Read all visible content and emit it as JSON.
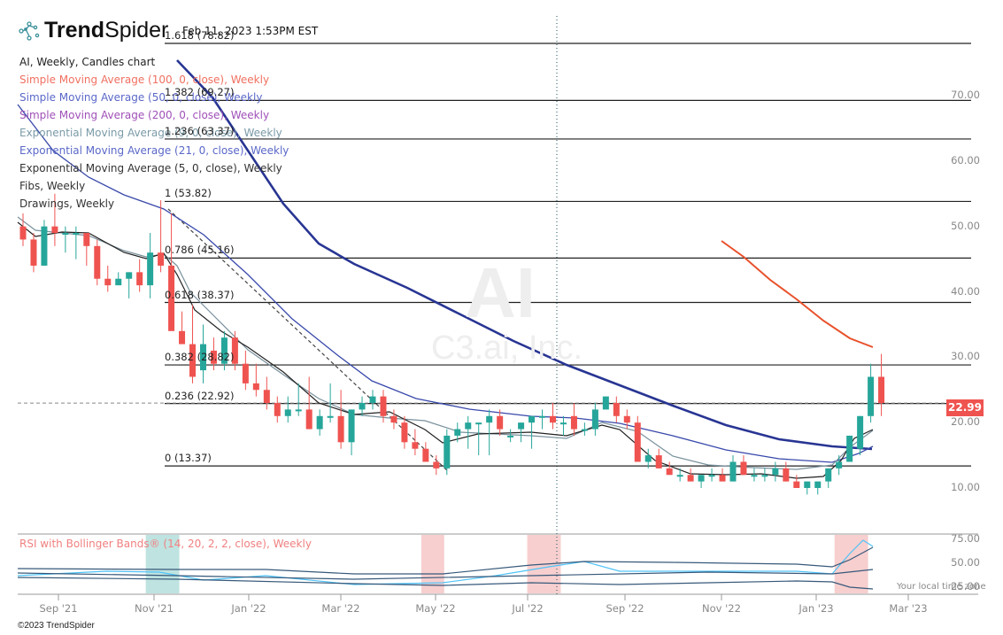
{
  "header": {
    "logo_bold": "Trend",
    "logo_light": "Spider",
    "timestamp": "Feb 11, 2023 1:53PM EST"
  },
  "legend": [
    {
      "label": "AI, Weekly, Candles chart",
      "color": "#222222"
    },
    {
      "label": "Simple Moving Average (100, 0, close), Weekly",
      "color": "#f07060"
    },
    {
      "label": "Simple Moving Average (50, 0, close), Weekly",
      "color": "#5a68c8"
    },
    {
      "label": "Simple Moving Average (200, 0, close), Weekly",
      "color": "#a050b8"
    },
    {
      "label": "Exponential Moving Average (9, 0, close), Weekly",
      "color": "#7a9aa8"
    },
    {
      "label": "Exponential Moving Average (21, 0, close), Weekly",
      "color": "#5a68c8"
    },
    {
      "label": "Exponential Moving Average (5, 0, close), Weekly",
      "color": "#333333"
    },
    {
      "label": "Fibs, Weekly",
      "color": "#333333"
    },
    {
      "label": "Drawings, Weekly",
      "color": "#333333"
    }
  ],
  "watermark": {
    "symbol": "AI",
    "company": "C3.ai, Inc."
  },
  "fibs": [
    {
      "label": "1.618 (78.82)",
      "value": 78.82
    },
    {
      "label": "1.382 (69.27)",
      "value": 69.27
    },
    {
      "label": "1.236 (63.37)",
      "value": 63.37
    },
    {
      "label": "1 (53.82)",
      "value": 53.82
    },
    {
      "label": "0.786 (45.16)",
      "value": 45.16
    },
    {
      "label": "0.618 (38.37)",
      "value": 38.37
    },
    {
      "label": "0.382 (28.82)",
      "value": 28.82
    },
    {
      "label": "0.236 (22.92)",
      "value": 22.92
    },
    {
      "label": "0 (13.37)",
      "value": 13.37
    }
  ],
  "last_price": "22.99",
  "rsi": {
    "title": "RSI with Bollinger Bands® (14, 20, 2, 2, close), Weekly",
    "y_labels": [
      "75.00",
      "50.00",
      "25.00"
    ]
  },
  "timezone_note": "Your local time zone",
  "copyright": "©2023 TrendSpider",
  "colors": {
    "up": "#26a69a",
    "down": "#ef5350",
    "sma100": "#e8502a",
    "sma50": "#283593",
    "ema21": "#3949ab",
    "ema9": "#78909c",
    "ema5": "#222222",
    "rsi": "#4fc3f7",
    "bb": "#37597a"
  },
  "chart_data": {
    "type": "candlestick",
    "title": "AI, Weekly, Candles chart",
    "symbol": "AI",
    "company": "C3.ai, Inc.",
    "x_ticks": [
      "Sep '21",
      "Nov '21",
      "Jan '22",
      "Mar '22",
      "May '22",
      "Jul '22",
      "Sep '22",
      "Nov '22",
      "Jan '23",
      "Mar '23"
    ],
    "y_ticks": [
      10,
      20,
      30,
      40,
      50,
      60,
      70
    ],
    "ylim": [
      6,
      80
    ],
    "last_price": 22.99,
    "candles": [
      {
        "o": 50,
        "h": 52,
        "l": 47,
        "c": 48
      },
      {
        "o": 48,
        "h": 49,
        "l": 43,
        "c": 44
      },
      {
        "o": 44,
        "h": 51,
        "l": 44,
        "c": 50
      },
      {
        "o": 50,
        "h": 55,
        "l": 47,
        "c": 49
      },
      {
        "o": 49,
        "h": 50,
        "l": 46,
        "c": 49
      },
      {
        "o": 49,
        "h": 50,
        "l": 45,
        "c": 49
      },
      {
        "o": 49,
        "h": 49,
        "l": 44,
        "c": 47
      },
      {
        "o": 47,
        "h": 48,
        "l": 41,
        "c": 42
      },
      {
        "o": 42,
        "h": 44,
        "l": 40,
        "c": 41
      },
      {
        "o": 41,
        "h": 43,
        "l": 41,
        "c": 42
      },
      {
        "o": 42,
        "h": 43,
        "l": 39,
        "c": 43
      },
      {
        "o": 43,
        "h": 45,
        "l": 40,
        "c": 41
      },
      {
        "o": 41,
        "h": 49,
        "l": 39,
        "c": 46
      },
      {
        "o": 46,
        "h": 54,
        "l": 43,
        "c": 44
      },
      {
        "o": 44,
        "h": 52,
        "l": 36,
        "c": 34
      },
      {
        "o": 34,
        "h": 37,
        "l": 32,
        "c": 32
      },
      {
        "o": 32,
        "h": 38,
        "l": 26,
        "c": 27
      },
      {
        "o": 28,
        "h": 35,
        "l": 26,
        "c": 32
      },
      {
        "o": 31,
        "h": 33,
        "l": 28,
        "c": 29
      },
      {
        "o": 29,
        "h": 34,
        "l": 28,
        "c": 33
      },
      {
        "o": 33,
        "h": 34,
        "l": 28,
        "c": 29
      },
      {
        "o": 29,
        "h": 31,
        "l": 25,
        "c": 26
      },
      {
        "o": 26,
        "h": 29,
        "l": 24,
        "c": 25
      },
      {
        "o": 25,
        "h": 27,
        "l": 22,
        "c": 23
      },
      {
        "o": 23,
        "h": 24,
        "l": 20,
        "c": 21
      },
      {
        "o": 21,
        "h": 24,
        "l": 20,
        "c": 22
      },
      {
        "o": 22,
        "h": 26,
        "l": 21,
        "c": 22
      },
      {
        "o": 22,
        "h": 27,
        "l": 19,
        "c": 19
      },
      {
        "o": 19,
        "h": 22,
        "l": 18,
        "c": 21
      },
      {
        "o": 21,
        "h": 26,
        "l": 20,
        "c": 21
      },
      {
        "o": 21,
        "h": 25,
        "l": 16,
        "c": 17
      },
      {
        "o": 17,
        "h": 22,
        "l": 15,
        "c": 22
      },
      {
        "o": 22,
        "h": 24,
        "l": 21,
        "c": 23
      },
      {
        "o": 23,
        "h": 25,
        "l": 22,
        "c": 24
      },
      {
        "o": 24,
        "h": 25,
        "l": 20,
        "c": 21
      },
      {
        "o": 21,
        "h": 22,
        "l": 19,
        "c": 20
      },
      {
        "o": 20,
        "h": 21,
        "l": 16,
        "c": 17
      },
      {
        "o": 17,
        "h": 19,
        "l": 15,
        "c": 16
      },
      {
        "o": 16,
        "h": 17,
        "l": 14,
        "c": 14
      },
      {
        "o": 14,
        "h": 15,
        "l": 12,
        "c": 13
      },
      {
        "o": 13,
        "h": 19,
        "l": 12,
        "c": 18
      },
      {
        "o": 18,
        "h": 20,
        "l": 17,
        "c": 19
      },
      {
        "o": 19,
        "h": 21,
        "l": 16,
        "c": 20
      },
      {
        "o": 20,
        "h": 20,
        "l": 15,
        "c": 20
      },
      {
        "o": 20,
        "h": 22,
        "l": 15,
        "c": 21
      },
      {
        "o": 21,
        "h": 22,
        "l": 18,
        "c": 19
      },
      {
        "o": 18,
        "h": 19,
        "l": 17,
        "c": 18
      },
      {
        "o": 19,
        "h": 20,
        "l": 17,
        "c": 20
      },
      {
        "o": 20,
        "h": 21,
        "l": 16,
        "c": 21
      },
      {
        "o": 21,
        "h": 22,
        "l": 19,
        "c": 21
      },
      {
        "o": 21,
        "h": 23,
        "l": 19,
        "c": 20
      },
      {
        "o": 20,
        "h": 21,
        "l": 18,
        "c": 20
      },
      {
        "o": 21,
        "h": 23,
        "l": 18,
        "c": 19
      },
      {
        "o": 19,
        "h": 20,
        "l": 18,
        "c": 19
      },
      {
        "o": 19,
        "h": 23,
        "l": 18,
        "c": 22
      },
      {
        "o": 22,
        "h": 24,
        "l": 22,
        "c": 24
      },
      {
        "o": 23,
        "h": 24,
        "l": 20,
        "c": 21
      },
      {
        "o": 21,
        "h": 22,
        "l": 19,
        "c": 20
      },
      {
        "o": 20,
        "h": 21,
        "l": 14,
        "c": 14
      },
      {
        "o": 14,
        "h": 16,
        "l": 13,
        "c": 15
      },
      {
        "o": 15,
        "h": 16,
        "l": 13,
        "c": 13
      },
      {
        "o": 13,
        "h": 14,
        "l": 12,
        "c": 12
      },
      {
        "o": 12,
        "h": 13,
        "l": 11,
        "c": 12
      },
      {
        "o": 12,
        "h": 13,
        "l": 11,
        "c": 11
      },
      {
        "o": 11,
        "h": 12,
        "l": 10,
        "c": 12
      },
      {
        "o": 12,
        "h": 13,
        "l": 11,
        "c": 12
      },
      {
        "o": 12,
        "h": 13,
        "l": 11,
        "c": 11
      },
      {
        "o": 11,
        "h": 15,
        "l": 11,
        "c": 14
      },
      {
        "o": 14,
        "h": 15,
        "l": 12,
        "c": 12
      },
      {
        "o": 12,
        "h": 13,
        "l": 11,
        "c": 12
      },
      {
        "o": 12,
        "h": 13,
        "l": 11,
        "c": 12
      },
      {
        "o": 12,
        "h": 14,
        "l": 11,
        "c": 13
      },
      {
        "o": 13,
        "h": 14,
        "l": 11,
        "c": 11
      },
      {
        "o": 11,
        "h": 12,
        "l": 10,
        "c": 10
      },
      {
        "o": 10,
        "h": 11,
        "l": 9,
        "c": 11
      },
      {
        "o": 10,
        "h": 11,
        "l": 9,
        "c": 11
      },
      {
        "o": 11,
        "h": 13,
        "l": 10,
        "c": 13
      },
      {
        "o": 13,
        "h": 15,
        "l": 12,
        "c": 14
      },
      {
        "o": 14,
        "h": 18,
        "l": 14,
        "c": 18
      },
      {
        "o": 16,
        "h": 21,
        "l": 15,
        "c": 21
      },
      {
        "o": 21,
        "h": 29,
        "l": 20,
        "c": 27
      },
      {
        "o": 27,
        "h": 30.5,
        "l": 21,
        "c": 22.99
      }
    ],
    "rsi_highlights": [
      {
        "type": "oversold",
        "from": 12,
        "to": 15
      },
      {
        "type": "overbought",
        "from": 38,
        "to": 40
      },
      {
        "type": "overbought",
        "from": 48,
        "to": 51
      },
      {
        "type": "overbought",
        "from": 77,
        "to": 80
      }
    ]
  }
}
